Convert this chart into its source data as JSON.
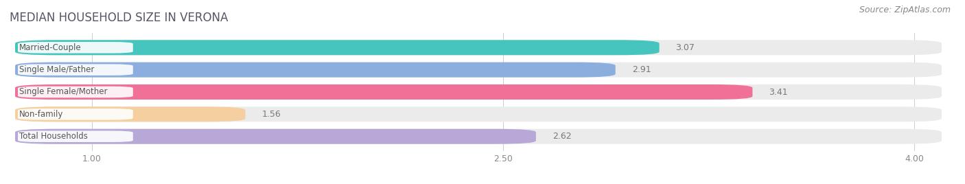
{
  "title": "MEDIAN HOUSEHOLD SIZE IN VERONA",
  "source": "Source: ZipAtlas.com",
  "categories": [
    "Married-Couple",
    "Single Male/Father",
    "Single Female/Mother",
    "Non-family",
    "Total Households"
  ],
  "values": [
    3.07,
    2.91,
    3.41,
    1.56,
    2.62
  ],
  "bar_colors": [
    "#45C5BE",
    "#8BAEDE",
    "#F07098",
    "#F5CFA0",
    "#B8A8D8"
  ],
  "bg_color": "#EBEBEB",
  "white_bg": "#FFFFFF",
  "xlim_start": 0.7,
  "xlim_end": 4.15,
  "xticks": [
    1.0,
    2.5,
    4.0
  ],
  "title_fontsize": 12,
  "source_fontsize": 9,
  "bar_label_fontsize": 9,
  "category_fontsize": 8.5,
  "tick_fontsize": 9,
  "bar_height": 0.68,
  "outside_threshold": 3.5
}
